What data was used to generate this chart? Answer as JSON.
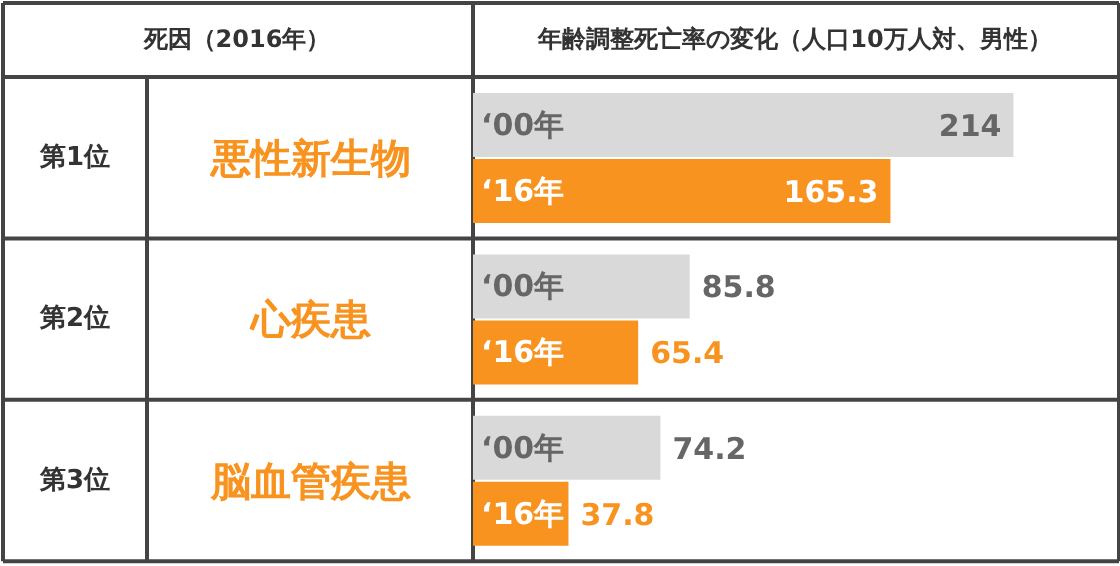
{
  "chart_data": {
    "type": "bar",
    "orientation": "horizontal",
    "title": "年齢調整死亡率の変化（人口10万人対、男性）",
    "ylabel": "死因（2016年）",
    "categories": [
      "悪性新生物",
      "心疾患",
      "脳血管疾患"
    ],
    "series": [
      {
        "name": "‘00年",
        "color": "#d9d9d9",
        "values": [
          214,
          85.8,
          74.2
        ]
      },
      {
        "name": "‘16年",
        "color": "#f7931e",
        "values": [
          165.3,
          65.4,
          37.8
        ]
      }
    ],
    "xlim": [
      0,
      255
    ],
    "data_labels": true,
    "annotations": [
      "第1位",
      "第2位",
      "第3位"
    ]
  }
}
